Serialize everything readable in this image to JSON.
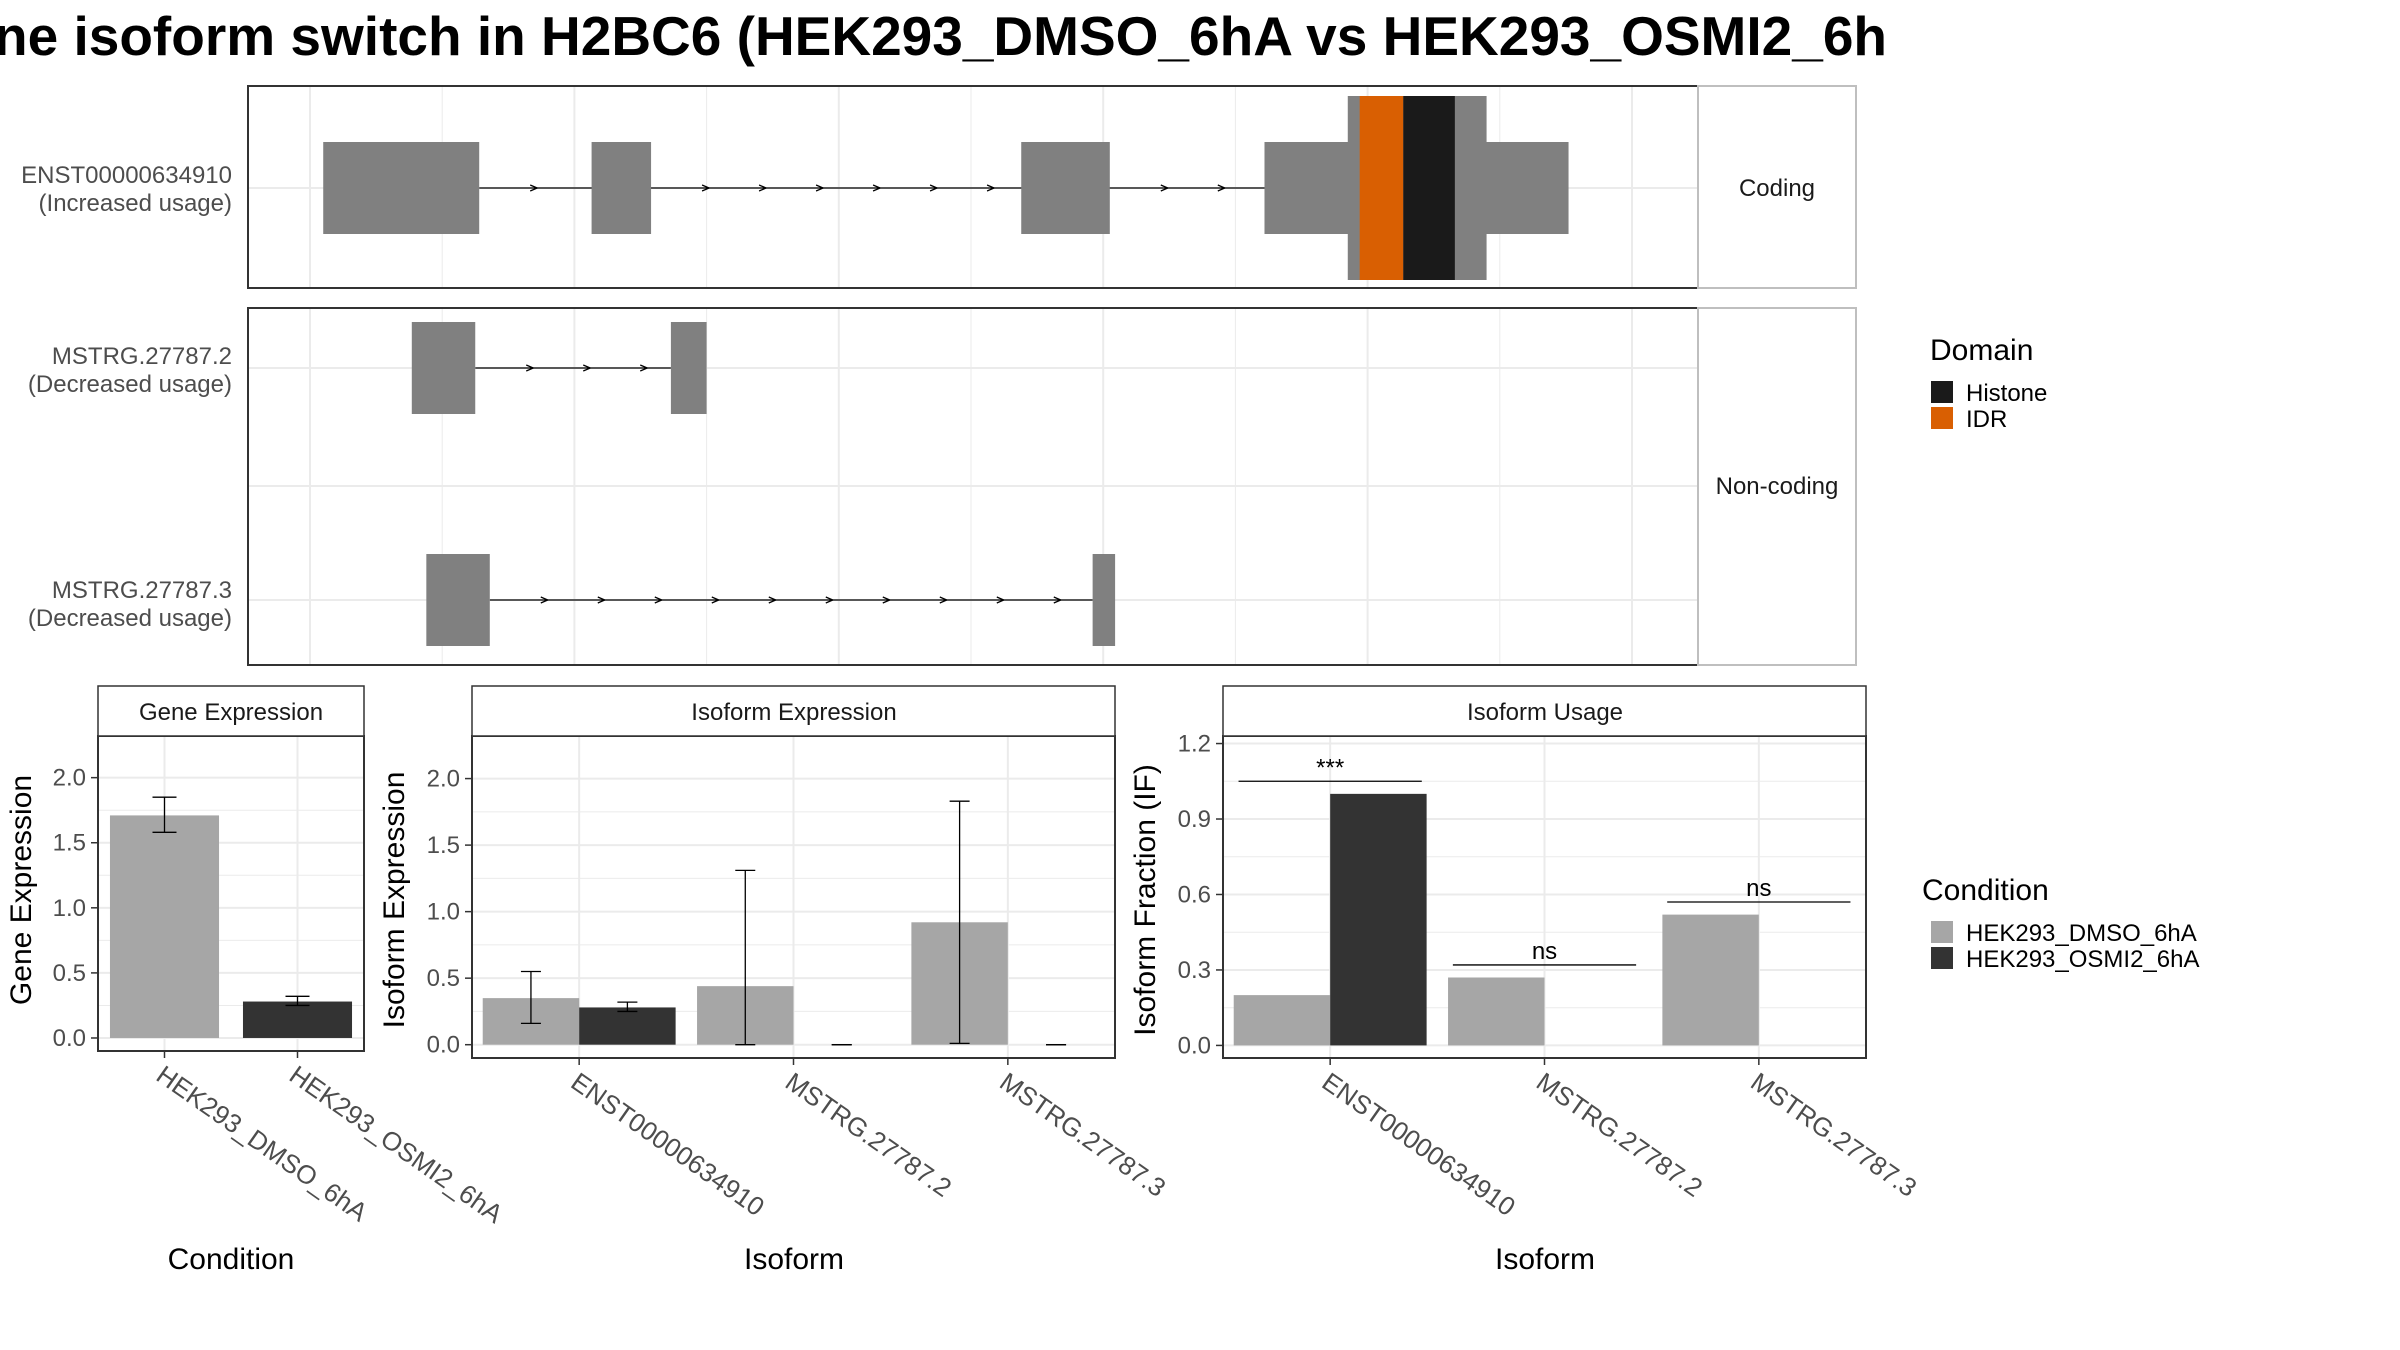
{
  "title": "ne isoform switch in H2BC6 (HEK293_DMSO_6hA vs HEK293_OSMI2_6h",
  "colors": {
    "exon": "#808080",
    "histone": "#1a1a1a",
    "idr": "#d95f02",
    "dmso": "#a6a6a6",
    "osmi": "#333333",
    "grid": "#ebebeb",
    "panel_border": "#333333",
    "strip_border": "#bfbfbf"
  },
  "structure": {
    "genomic_range": [
      0,
      1000
    ],
    "coding_strip": "Coding",
    "noncoding_strip": "Non-coding",
    "transcripts": [
      {
        "name": "ENST00000634910",
        "usage": "(Increased usage)",
        "coding": true,
        "exons": [
          [
            10,
            128
          ],
          [
            213,
            258
          ],
          [
            538,
            605
          ],
          [
            722,
            952
          ]
        ],
        "thick": [
          [
            785,
            890
          ]
        ],
        "domains": [
          {
            "type": "IDR",
            "range": [
              794,
              827
            ]
          },
          {
            "type": "Histone",
            "range": [
              827,
              866
            ]
          }
        ]
      },
      {
        "name": "MSTRG.27787.2",
        "usage": "(Decreased usage)",
        "coding": false,
        "exons": [
          [
            77,
            125
          ],
          [
            273,
            300
          ]
        ]
      },
      {
        "name": "MSTRG.27787.3",
        "usage": "(Decreased usage)",
        "coding": false,
        "exons": [
          [
            88,
            136
          ],
          [
            592,
            609
          ]
        ]
      }
    ]
  },
  "legends": {
    "domain_title": "Domain",
    "domain_items": [
      {
        "label": "Histone",
        "color": "#1a1a1a"
      },
      {
        "label": "IDR",
        "color": "#d95f02"
      }
    ],
    "condition_title": "Condition",
    "condition_items": [
      {
        "label": "HEK293_DMSO_6hA",
        "color": "#a6a6a6"
      },
      {
        "label": "HEK293_OSMI2_6hA",
        "color": "#333333"
      }
    ]
  },
  "chart_data": [
    {
      "type": "bar",
      "title": "Gene Expression",
      "xlabel": "Condition",
      "ylabel": "Gene Expression",
      "ylim": [
        -0.1,
        2.32
      ],
      "yticks": [
        0.0,
        0.5,
        1.0,
        1.5,
        2.0
      ],
      "ytick_labels": [
        "0.0",
        "0.5",
        "1.0",
        "1.5",
        "2.0"
      ],
      "categories": [
        "HEK293_DMSO_6hA",
        "HEK293_OSMI2_6hA"
      ],
      "values": [
        1.71,
        0.28
      ],
      "errors": [
        [
          1.58,
          1.85
        ],
        [
          0.25,
          0.32
        ]
      ]
    },
    {
      "type": "bar",
      "title": "Isoform Expression",
      "xlabel": "Isoform",
      "ylabel": "Isoform Expression",
      "ylim": [
        -0.1,
        2.32
      ],
      "yticks": [
        0.0,
        0.5,
        1.0,
        1.5,
        2.0
      ],
      "ytick_labels": [
        "0.0",
        "0.5",
        "1.0",
        "1.5",
        "2.0"
      ],
      "categories": [
        "ENST00000634910",
        "MSTRG.27787.2",
        "MSTRG.27787.3"
      ],
      "series": [
        {
          "name": "HEK293_DMSO_6hA",
          "values": [
            0.35,
            0.44,
            0.92
          ],
          "errors": [
            [
              0.16,
              0.55
            ],
            [
              0.0,
              1.31
            ],
            [
              0.01,
              1.83
            ]
          ]
        },
        {
          "name": "HEK293_OSMI2_6hA",
          "values": [
            0.28,
            0.0,
            0.0
          ],
          "errors": [
            [
              0.25,
              0.32
            ],
            [
              0.0,
              0.0
            ],
            [
              0.0,
              0.0
            ]
          ]
        }
      ]
    },
    {
      "type": "bar",
      "title": "Isoform Usage",
      "xlabel": "Isoform",
      "ylabel": "Isoform Fraction (IF)",
      "ylim": [
        -0.05,
        1.23
      ],
      "yticks": [
        0.0,
        0.3,
        0.6,
        0.9,
        1.2
      ],
      "ytick_labels": [
        "0.0",
        "0.3",
        "0.6",
        "0.9",
        "1.2"
      ],
      "categories": [
        "ENST00000634910",
        "MSTRG.27787.2",
        "MSTRG.27787.3"
      ],
      "series": [
        {
          "name": "HEK293_DMSO_6hA",
          "values": [
            0.2,
            0.27,
            0.52
          ]
        },
        {
          "name": "HEK293_OSMI2_6hA",
          "values": [
            1.0,
            0.0,
            0.0
          ]
        }
      ],
      "significance": [
        {
          "label": "***",
          "y": 1.05
        },
        {
          "label": "ns",
          "y": 0.32
        },
        {
          "label": "ns",
          "y": 0.57
        }
      ]
    }
  ]
}
